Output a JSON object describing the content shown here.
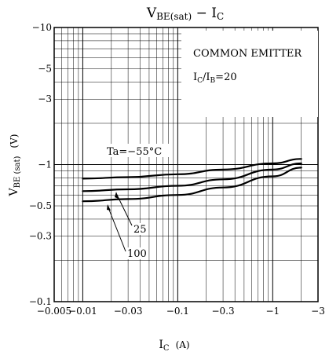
{
  "chart_data": {
    "type": "line",
    "title_main": "V",
    "title_main_sub": "BE(sat)",
    "title_sep": " − ",
    "title_ic": "I",
    "title_ic_sub": "C",
    "xlabel_main": "I",
    "xlabel_sub": "C",
    "xlabel_unit": "(A)",
    "ylabel_main": "V",
    "ylabel_sub": "BE (sat)",
    "ylabel_unit": "(V)",
    "x_scale": "log",
    "y_scale": "log",
    "xlim": [
      0.005,
      3
    ],
    "ylim": [
      0.1,
      10
    ],
    "grid": true,
    "x_ticks": [
      {
        "value": 0.005,
        "label": "−0.005"
      },
      {
        "value": 0.01,
        "label": "−0.01"
      },
      {
        "value": 0.03,
        "label": "−0.03"
      },
      {
        "value": 0.1,
        "label": "−0.1"
      },
      {
        "value": 0.3,
        "label": "−0.3"
      },
      {
        "value": 1,
        "label": "−1"
      },
      {
        "value": 3,
        "label": "−3"
      }
    ],
    "y_ticks": [
      {
        "value": 10,
        "label": "−10"
      },
      {
        "value": 5,
        "label": "−5"
      },
      {
        "value": 3,
        "label": "−3"
      },
      {
        "value": 1,
        "label": "−1"
      },
      {
        "value": 0.5,
        "label": "−0.5"
      },
      {
        "value": 0.3,
        "label": "−0.3"
      },
      {
        "value": 0.1,
        "label": "−0.1"
      }
    ],
    "annotations": {
      "box_line1": "COMMON EMITTER",
      "box_line2_main": "I",
      "box_line2_sub1": "C",
      "box_line2_mid": "/I",
      "box_line2_sub2": "B",
      "box_line2_end": "=20",
      "ta_label": "Ta=−55°C",
      "label_25": "25",
      "label_100": "100"
    },
    "series": [
      {
        "name": "Ta=−55°C",
        "x": [
          0.01,
          0.03,
          0.1,
          0.3,
          1,
          2
        ],
        "y": [
          0.79,
          0.81,
          0.85,
          0.92,
          1.02,
          1.1
        ]
      },
      {
        "name": "25",
        "x": [
          0.01,
          0.03,
          0.1,
          0.3,
          1,
          2
        ],
        "y": [
          0.64,
          0.66,
          0.7,
          0.78,
          0.92,
          1.02
        ]
      },
      {
        "name": "100",
        "x": [
          0.01,
          0.03,
          0.1,
          0.3,
          1,
          2
        ],
        "y": [
          0.54,
          0.56,
          0.6,
          0.68,
          0.82,
          0.95
        ]
      }
    ]
  }
}
